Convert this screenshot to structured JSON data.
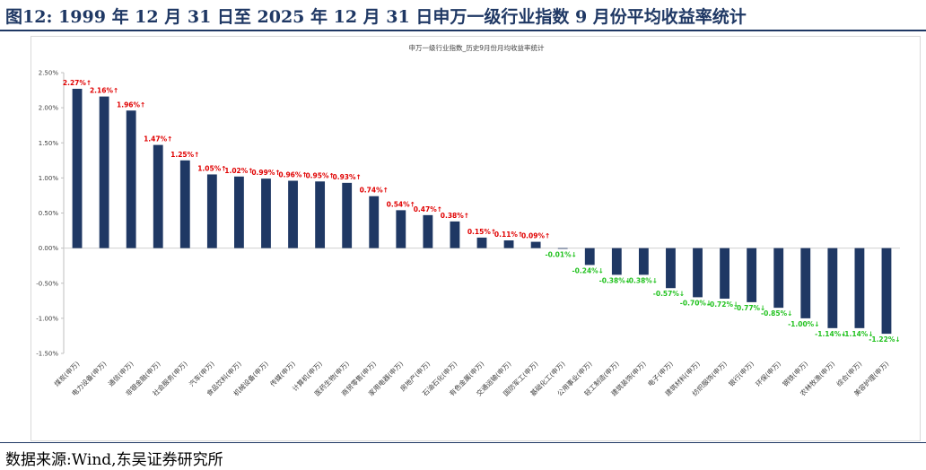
{
  "header": {
    "title": "图12:  1999 年 12 月 31 日至 2025 年 12 月 31 日申万一级行业指数 9 月份平均收益率统计"
  },
  "footer": {
    "source": "数据来源:Wind,东吴证券研究所"
  },
  "colors": {
    "bar": "#1f3864",
    "label_positive": "#e00000",
    "label_negative": "#22c21f",
    "accent": "#1f3864"
  },
  "chart_data": {
    "type": "bar",
    "title": "申万一级行业指数_历史9月份月均收益率统计",
    "xlabel": "",
    "ylabel": "",
    "ylim": [
      -1.5,
      2.5
    ],
    "yticks": [
      "2.50%",
      "2.00%",
      "1.50%",
      "1.00%",
      "0.50%",
      "0.00%",
      "-0.50%",
      "-1.00%",
      "-1.50%"
    ],
    "grid": false,
    "legend": "none",
    "categories": [
      "煤炭(申万)",
      "电力设备(申万)",
      "通信(申万)",
      "非银金融(申万)",
      "社会服务(申万)",
      "汽车(申万)",
      "食品饮料(申万)",
      "机械设备(申万)",
      "传媒(申万)",
      "计算机(申万)",
      "医药生物(申万)",
      "商贸零售(申万)",
      "家用电器(申万)",
      "房地产(申万)",
      "石油石化(申万)",
      "有色金属(申万)",
      "交通运输(申万)",
      "国防军工(申万)",
      "基础化工(申万)",
      "公用事业(申万)",
      "轻工制造(申万)",
      "建筑装饰(申万)",
      "电子(申万)",
      "建筑材料(申万)",
      "纺织服饰(申万)",
      "银行(申万)",
      "环保(申万)",
      "钢铁(申万)",
      "农林牧渔(申万)",
      "综合(申万)",
      "美容护理(申万)"
    ],
    "values": [
      2.27,
      2.16,
      1.96,
      1.47,
      1.25,
      1.05,
      1.02,
      0.99,
      0.96,
      0.95,
      0.93,
      0.74,
      0.54,
      0.47,
      0.38,
      0.15,
      0.11,
      0.09,
      -0.01,
      -0.24,
      -0.38,
      -0.38,
      -0.57,
      -0.7,
      -0.72,
      -0.77,
      -0.85,
      -1.0,
      -1.14,
      -1.14,
      -1.22
    ],
    "labels": [
      "2.27%↑",
      "2.16%↑",
      "1.96%↑",
      "1.47%↑",
      "1.25%↑",
      "1.05%↑",
      "1.02%↑",
      "0.99%↑",
      "0.96%↑",
      "0.95%↑",
      "0.93%↑",
      "0.74%↑",
      "0.54%↑",
      "0.47%↑",
      "0.38%↑",
      "0.15%↑",
      "0.11%↑",
      "0.09%↑",
      "-0.01%↓",
      "-0.24%↓",
      "-0.38%↓",
      "-0.38%↓",
      "-0.57%↓",
      "-0.70%↓",
      "-0.72%↓",
      "-0.77%↓",
      "-0.85%↓",
      "-1.00%↓",
      "-1.14%↓",
      "-1.14%↓",
      "-1.22%↓"
    ]
  }
}
